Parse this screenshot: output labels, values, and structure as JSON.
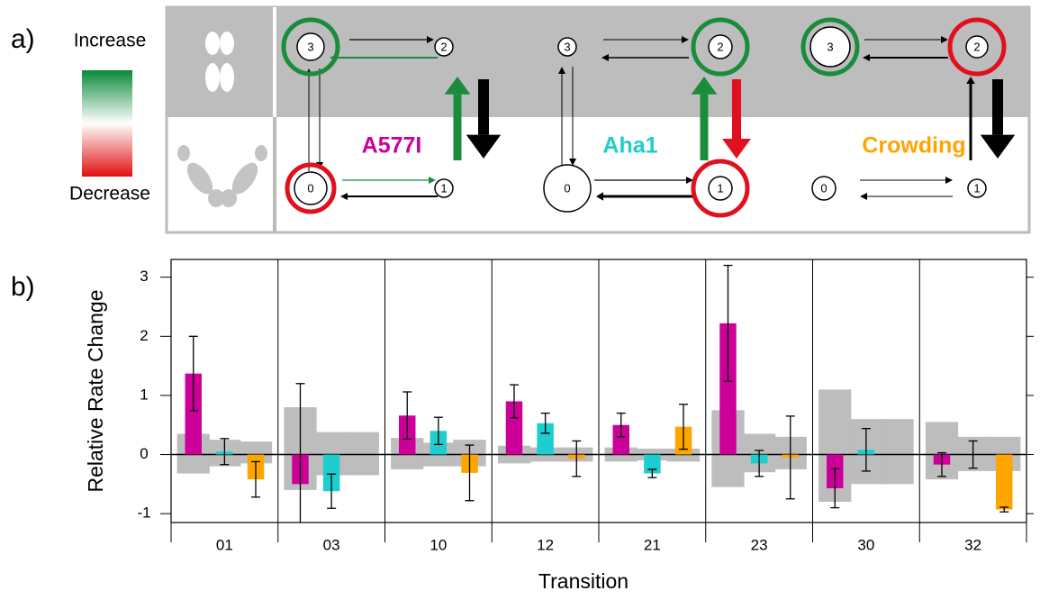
{
  "panel_a": {
    "label": "a)",
    "legend": {
      "high": "Increase",
      "low": "Decrease"
    },
    "states": [
      "0",
      "1",
      "2",
      "3"
    ]
  },
  "panel_b_label": "b)",
  "chart_data": {
    "type": "bar",
    "xlabel": "Transition",
    "ylabel": "Relative Rate Change",
    "categories": [
      "01",
      "03",
      "10",
      "12",
      "21",
      "23",
      "30",
      "32"
    ],
    "ylim": [
      -1.15,
      3.3
    ],
    "yticks": [
      -1,
      0,
      1,
      2,
      3
    ],
    "series": [
      {
        "name": "A577I",
        "color": "#cc0099",
        "values": [
          1.37,
          -0.5,
          0.66,
          0.9,
          0.5,
          2.22,
          -0.57,
          -0.17
        ],
        "errors": [
          0.63,
          1.7,
          0.4,
          0.28,
          0.2,
          0.98,
          0.33,
          0.2
        ],
        "band_low": [
          -0.32,
          -0.6,
          -0.25,
          -0.15,
          -0.12,
          -0.55,
          -0.8,
          -0.42
        ],
        "band_high": [
          0.35,
          0.8,
          0.28,
          0.15,
          0.12,
          0.75,
          1.1,
          0.55
        ]
      },
      {
        "name": "Aha1",
        "color": "#1ecdcd",
        "values": [
          0.05,
          -0.62,
          0.4,
          0.53,
          -0.32,
          -0.15,
          0.08,
          0.0
        ],
        "errors": [
          0.22,
          0.29,
          0.23,
          0.17,
          0.07,
          0.22,
          0.36,
          0.23
        ],
        "band_low": [
          -0.2,
          -0.35,
          -0.2,
          -0.12,
          -0.1,
          -0.3,
          -0.5,
          -0.28
        ],
        "band_high": [
          0.25,
          0.38,
          0.2,
          0.12,
          0.1,
          0.35,
          0.6,
          0.3
        ]
      },
      {
        "name": "Crowding",
        "color": "#ffa500",
        "values": [
          -0.42,
          null,
          -0.31,
          -0.07,
          0.47,
          -0.05,
          null,
          -0.93
        ],
        "errors": [
          0.3,
          null,
          0.47,
          0.3,
          0.38,
          0.7,
          null,
          0.04
        ],
        "band_low": [
          -0.15,
          -0.35,
          -0.2,
          -0.12,
          -0.12,
          -0.25,
          -0.5,
          -0.28
        ],
        "band_high": [
          0.22,
          0.38,
          0.25,
          0.12,
          0.1,
          0.3,
          0.6,
          0.3
        ]
      }
    ]
  }
}
